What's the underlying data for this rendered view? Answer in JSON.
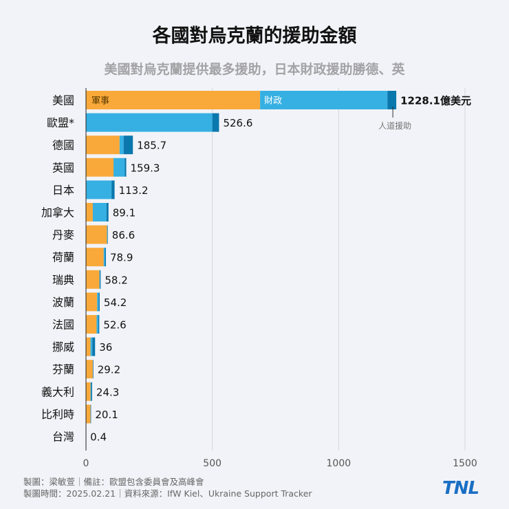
{
  "title": "各國對烏克蘭的援助金額",
  "subtitle": "美國對烏克蘭提供最多援助，日本財政援助勝德、英",
  "chart_data": {
    "type": "bar",
    "orientation": "horizontal",
    "stacked": true,
    "categories": [
      "美國",
      "歐盟*",
      "德國",
      "英國",
      "日本",
      "加拿大",
      "丹麥",
      "荷蘭",
      "瑞典",
      "波蘭",
      "法國",
      "挪威",
      "芬蘭",
      "義大利",
      "比利時",
      "台灣"
    ],
    "series": [
      {
        "name": "軍事",
        "color": "#f9a93a",
        "values": [
          689,
          0,
          133,
          109,
          0,
          27,
          83,
          70,
          53,
          44,
          42,
          18,
          27,
          18,
          18,
          0
        ]
      },
      {
        "name": "財政",
        "color": "#36b0e2",
        "values": [
          504,
          500,
          16,
          44,
          101,
          54,
          2,
          5,
          2,
          6,
          7,
          7,
          0,
          2,
          0,
          0
        ]
      },
      {
        "name": "人道援助",
        "color": "#0a77ad",
        "values": [
          35.1,
          26.6,
          36.7,
          6.3,
          12.2,
          8.1,
          1.6,
          3.9,
          3.2,
          4.2,
          3.6,
          11,
          2.2,
          4.3,
          2.1,
          0.4
        ]
      }
    ],
    "totals": [
      "1228.1億美元",
      "526.6",
      "185.7",
      "159.3",
      "113.2",
      "89.1",
      "86.6",
      "78.9",
      "58.2",
      "54.2",
      "52.6",
      "36",
      "29.2",
      "24.3",
      "20.1",
      "0.4"
    ],
    "xticks": [
      "0",
      "500",
      "1000",
      "1500"
    ],
    "xlim": [
      0,
      1500
    ],
    "grid": true,
    "unit": "億美元"
  },
  "footer": {
    "line1": "製圖：梁敏萱｜備註：歐盟包含委員會及高峰會",
    "line2": "製圖時間：2025.02.21｜資料來源：IfW Kiel、Ukraine Support Tracker"
  },
  "logo": "TNL"
}
